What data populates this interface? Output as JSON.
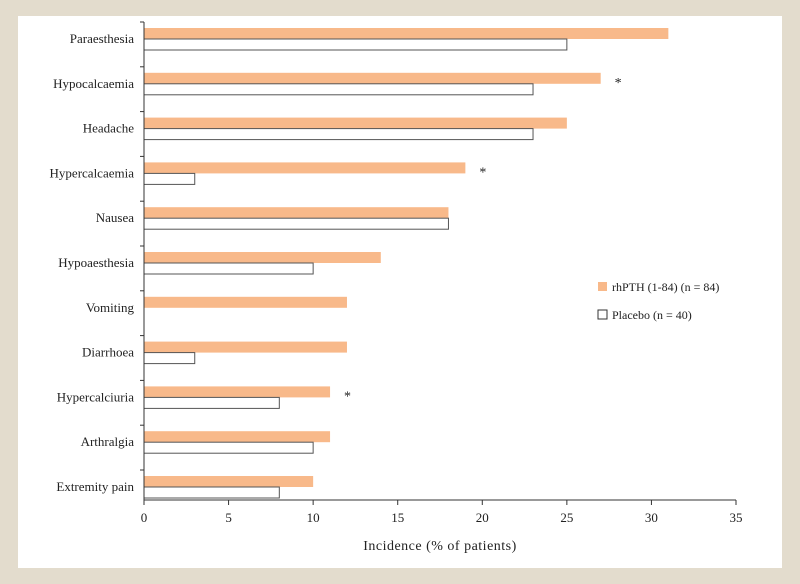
{
  "chart_data": {
    "type": "bar",
    "orientation": "horizontal",
    "categories": [
      "Paraesthesia",
      "Hypocalcaemia",
      "Headache",
      "Hypercalcaemia",
      "Nausea",
      "Hypoaesthesia",
      "Vomiting",
      "Diarrhoea",
      "Hypercalciuria",
      "Arthralgia",
      "Extremity pain"
    ],
    "series": [
      {
        "name": "rhPTH (1-84)  (n = 84)",
        "color": "#f8b98a",
        "values": [
          31,
          27,
          25,
          19,
          18,
          14,
          12,
          12,
          11,
          11,
          10
        ]
      },
      {
        "name": "Placebo  (n = 40)",
        "color": "#ffffff",
        "values": [
          25,
          23,
          23,
          3,
          18,
          10,
          0,
          3,
          8,
          10,
          8
        ]
      }
    ],
    "significance_markers": [
      {
        "category": "Hypocalcaemia",
        "symbol": "*"
      },
      {
        "category": "Hypercalcaemia",
        "symbol": "*"
      },
      {
        "category": "Hypercalciuria",
        "symbol": "*"
      }
    ],
    "xlabel": "Incidence (% of patients)",
    "ylabel": "",
    "xlim": [
      0,
      35
    ],
    "xticks": [
      0,
      5,
      10,
      15,
      20,
      25,
      30,
      35
    ],
    "grid": false,
    "legend_position": "right"
  }
}
